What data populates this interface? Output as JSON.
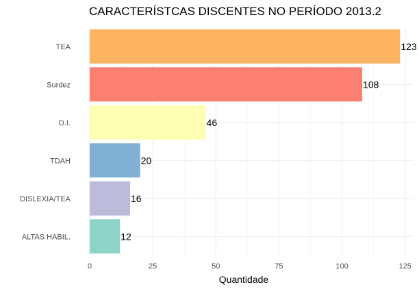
{
  "chart_data": {
    "type": "bar",
    "orientation": "horizontal",
    "title": "CARACTERÍSTCAS DISCENTES NO PERÍODO 2013.2",
    "xlabel": "Quantidade",
    "ylabel": "",
    "xlim": [
      0,
      127
    ],
    "x_ticks": [
      0,
      25,
      50,
      75,
      100,
      125
    ],
    "grid": true,
    "categories": [
      "TEA",
      "Surdez",
      "D.I.",
      "TDAH",
      "DISLEXIA/TEA",
      "ALTAS HABIL."
    ],
    "values": [
      123,
      108,
      46,
      20,
      16,
      12
    ],
    "colors": [
      "#fdb462",
      "#fb8072",
      "#ffffb3",
      "#80b1d3",
      "#bebada",
      "#8dd3c7"
    ],
    "data_labels": [
      "123",
      "108",
      "46",
      "20",
      "16",
      "12"
    ]
  }
}
